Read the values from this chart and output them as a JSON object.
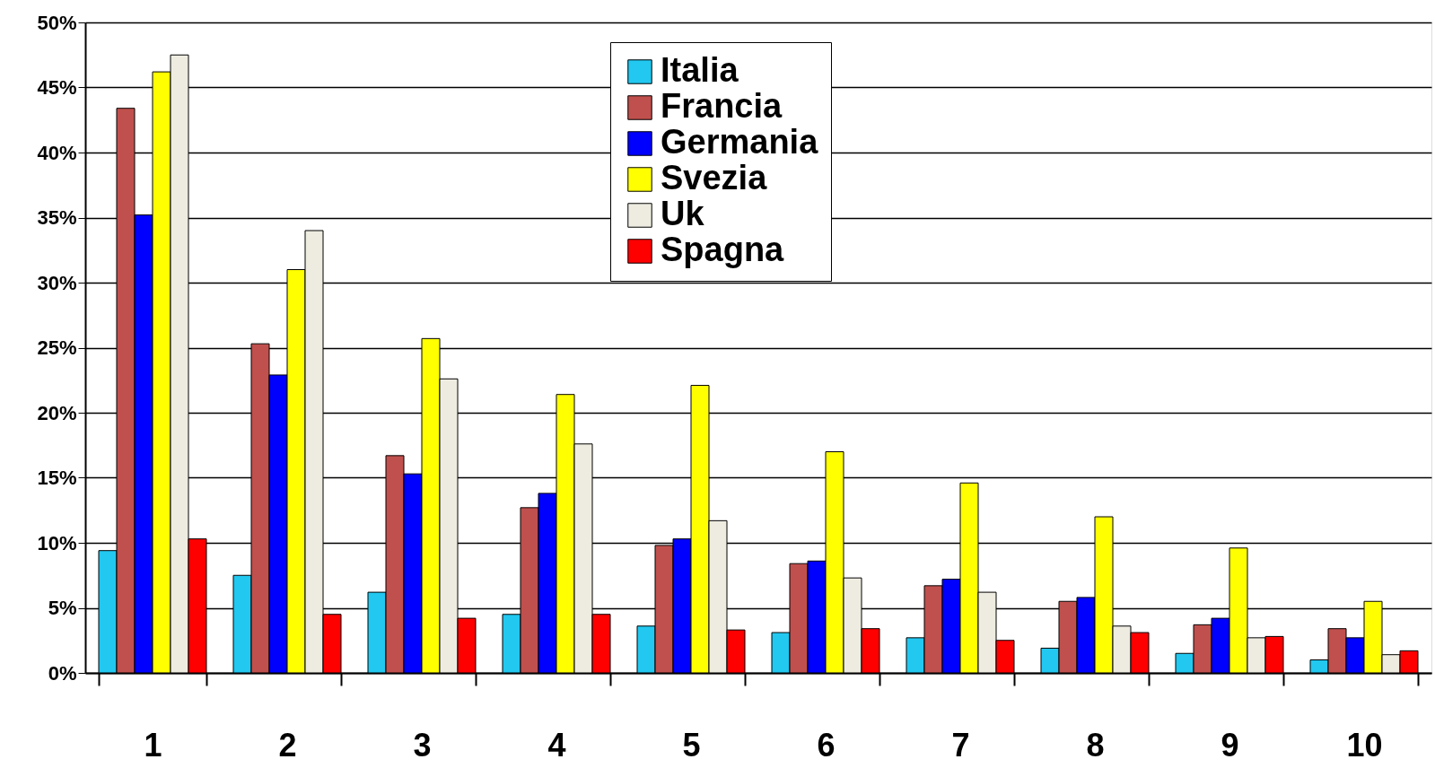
{
  "chart_data": {
    "type": "bar",
    "categories": [
      "1",
      "2",
      "3",
      "4",
      "5",
      "6",
      "7",
      "8",
      "9",
      "10"
    ],
    "series": [
      {
        "name": "Italia",
        "color": "#22c8f0",
        "values": [
          9.4,
          7.5,
          6.2,
          4.5,
          3.6,
          3.1,
          2.7,
          1.9,
          1.5,
          1.0
        ]
      },
      {
        "name": "Francia",
        "color": "#c0504d",
        "values": [
          43.4,
          25.3,
          16.7,
          12.7,
          9.8,
          8.4,
          6.7,
          5.5,
          3.7,
          3.4
        ]
      },
      {
        "name": "Germania",
        "color": "#0000ff",
        "values": [
          35.2,
          22.9,
          15.3,
          13.8,
          10.3,
          8.6,
          7.2,
          5.8,
          4.2,
          2.7
        ]
      },
      {
        "name": "Svezia",
        "color": "#ffff00",
        "values": [
          46.2,
          31.0,
          25.7,
          21.4,
          22.1,
          17.0,
          14.6,
          12.0,
          9.6,
          5.5
        ]
      },
      {
        "name": "Uk",
        "color": "#eeece1",
        "values": [
          47.5,
          34.0,
          22.6,
          17.6,
          11.7,
          7.3,
          6.2,
          3.6,
          2.7,
          1.4
        ]
      },
      {
        "name": "Spagna",
        "color": "#ff0000",
        "values": [
          10.3,
          4.5,
          4.2,
          4.5,
          3.3,
          3.4,
          2.5,
          3.1,
          2.8,
          1.7
        ]
      }
    ],
    "ylim": [
      0,
      50
    ],
    "yticks": [
      {
        "value": 0,
        "label": "0%"
      },
      {
        "value": 5,
        "label": "5%"
      },
      {
        "value": 10,
        "label": "10%"
      },
      {
        "value": 15,
        "label": "15%"
      },
      {
        "value": 20,
        "label": "20%"
      },
      {
        "value": 25,
        "label": "25%"
      },
      {
        "value": 30,
        "label": "30%"
      },
      {
        "value": 35,
        "label": "35%"
      },
      {
        "value": 40,
        "label": "40%"
      },
      {
        "value": 45,
        "label": "45%"
      },
      {
        "value": 50,
        "label": "50%"
      }
    ],
    "grid": "y",
    "legend": "top"
  }
}
